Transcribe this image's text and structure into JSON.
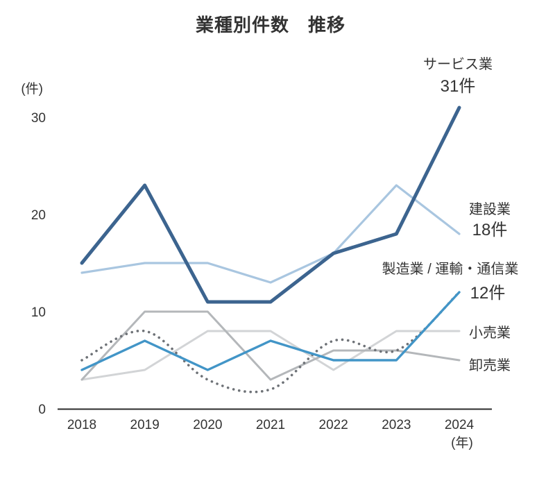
{
  "title": "業種別件数　推移",
  "axes": {
    "y_unit": "(件)",
    "x_unit": "(年)",
    "yticks": [
      0,
      10,
      20,
      30
    ],
    "xticks": [
      "2018",
      "2019",
      "2020",
      "2021",
      "2022",
      "2023",
      "2024"
    ]
  },
  "colors": {
    "axis": "#2b2b2b",
    "text": "#333333"
  },
  "chart_data": {
    "type": "line",
    "x": [
      2018,
      2019,
      2020,
      2021,
      2022,
      2023,
      2024
    ],
    "ylim": [
      0,
      31
    ],
    "yticks": [
      0,
      10,
      20,
      30
    ],
    "grid": false,
    "legend_position": "right-annotations",
    "title": "業種別件数　推移",
    "xlabel": "(年)",
    "ylabel": "(件)",
    "series": [
      {
        "key": "retail",
        "name": "小売業",
        "values": [
          3,
          4,
          8,
          8,
          4,
          8,
          8
        ],
        "color": "#d2d4d6",
        "width": 3,
        "style": "solid",
        "smooth": false
      },
      {
        "key": "wholesale",
        "name": "卸売業",
        "values": [
          3,
          10,
          10,
          3,
          6,
          6,
          5
        ],
        "color": "#b4b7ba",
        "width": 3,
        "style": "solid",
        "smooth": false
      },
      {
        "key": "transport",
        "name": "運輸・通信業",
        "values": [
          5,
          8,
          3,
          2,
          7,
          6,
          12
        ],
        "color": "#6e7277",
        "width": 3.6,
        "style": "dotted",
        "smooth": true
      },
      {
        "key": "manufacturing",
        "name": "製造業",
        "values": [
          4,
          7,
          4,
          7,
          5,
          5,
          12
        ],
        "color": "#4295c7",
        "width": 3.4,
        "style": "solid",
        "smooth": false
      },
      {
        "key": "construction",
        "name": "建設業",
        "values": [
          14,
          15,
          15,
          13,
          16,
          23,
          18
        ],
        "color": "#a9c6e0",
        "width": 3.2,
        "style": "solid",
        "smooth": false
      },
      {
        "key": "service",
        "name": "サービス業",
        "values": [
          15,
          23,
          11,
          11,
          16,
          18,
          31
        ],
        "color": "#3c648f",
        "width": 5,
        "style": "solid",
        "smooth": false
      }
    ]
  },
  "annotations": {
    "service": {
      "label": "サービス業",
      "value": "31件"
    },
    "construction": {
      "label": "建設業",
      "value": "18件"
    },
    "manufacturing": {
      "label": "製造業 / 運輸・通信業",
      "value": "12件"
    },
    "retail": {
      "label": "小売業",
      "value": ""
    },
    "wholesale": {
      "label": "卸売業",
      "value": ""
    }
  }
}
